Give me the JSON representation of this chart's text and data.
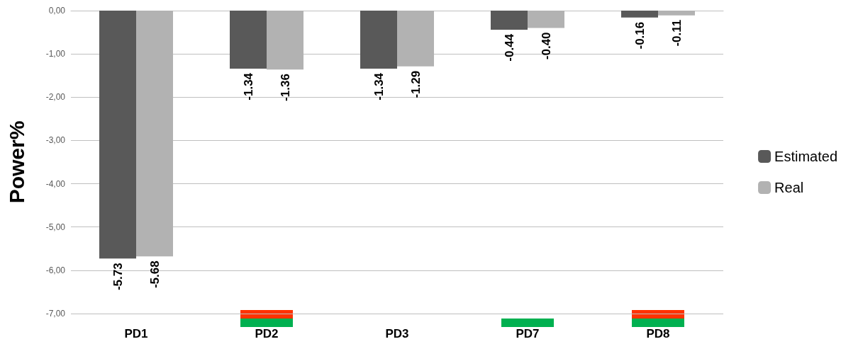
{
  "chart_data": {
    "type": "bar",
    "ylabel": "Power%",
    "categories": [
      "PD1",
      "PD2",
      "PD3",
      "PD7",
      "PD8"
    ],
    "series": [
      {
        "name": "Estimated",
        "color": "#595959",
        "values": [
          -5.73,
          -1.34,
          -1.34,
          -0.44,
          -0.16
        ],
        "value_labels": [
          "-5.73",
          "-1.34",
          "-1.34",
          "-0.44",
          "-0.16"
        ]
      },
      {
        "name": "Real",
        "color": "#b2b2b2",
        "values": [
          -5.68,
          -1.36,
          -1.29,
          -0.4,
          -0.11
        ],
        "value_labels": [
          "-5.68",
          "-1.36",
          "-1.29",
          "-0.40",
          "-0.11"
        ]
      }
    ],
    "ylim": [
      -7,
      0
    ],
    "yticks": [
      {
        "value": -7,
        "label": "-7,00"
      },
      {
        "value": -6,
        "label": "-6,00"
      },
      {
        "value": -5,
        "label": "-5,00"
      },
      {
        "value": -4,
        "label": "-4,00"
      },
      {
        "value": -3,
        "label": "-3,00"
      },
      {
        "value": -2,
        "label": "-2,00"
      },
      {
        "value": -1,
        "label": "-1,00"
      },
      {
        "value": 0,
        "label": "0,00"
      }
    ],
    "grid": "y",
    "legend": "right"
  }
}
